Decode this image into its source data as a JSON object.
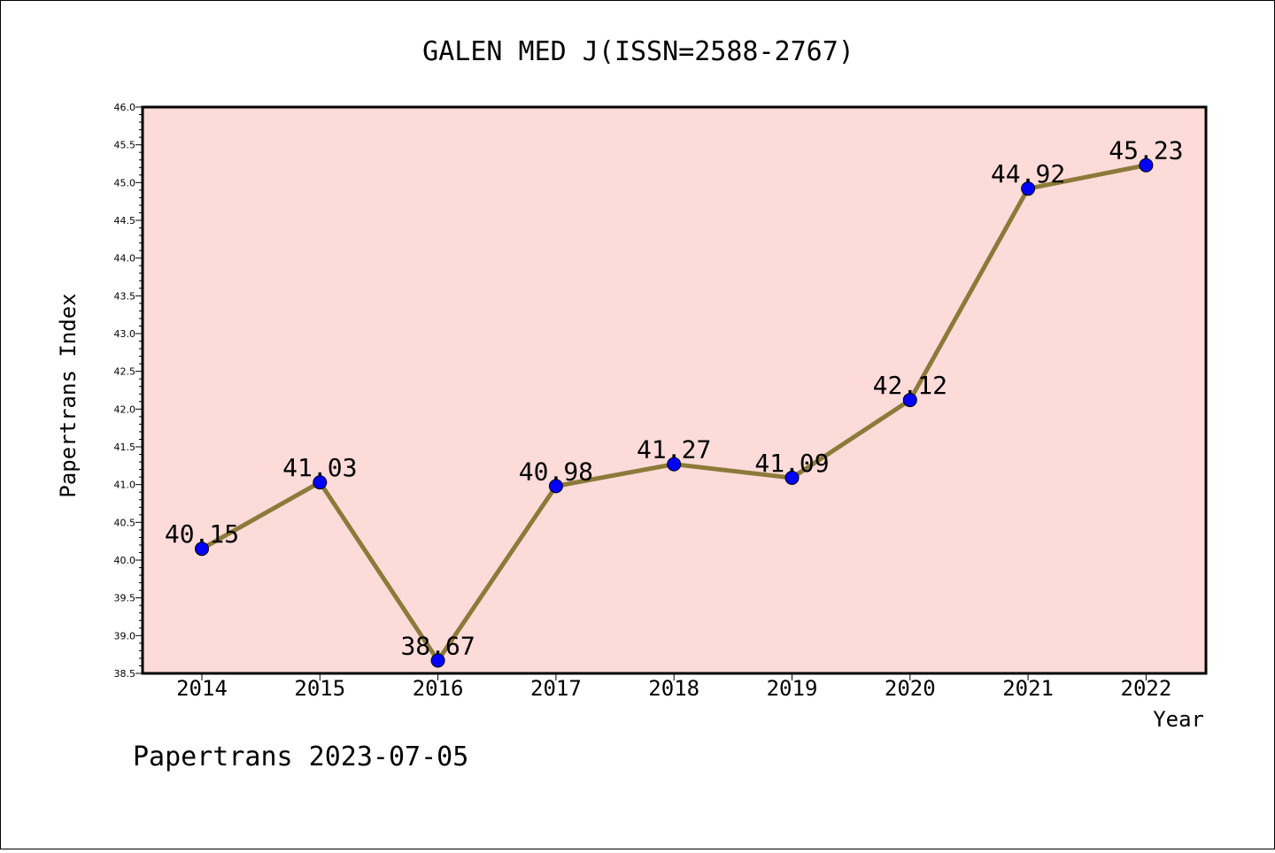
{
  "chart_data": {
    "type": "line",
    "title": "GALEN MED J(ISSN=2588-2767)",
    "xlabel": "Year",
    "ylabel": "Papertrans Index",
    "categories": [
      "2014",
      "2015",
      "2016",
      "2017",
      "2018",
      "2019",
      "2020",
      "2021",
      "2022"
    ],
    "series": [
      {
        "values": [
          40.15,
          41.03,
          38.67,
          40.98,
          41.27,
          41.09,
          42.12,
          44.92,
          45.23
        ],
        "labels": [
          "40.15",
          "41.03",
          "38.67",
          "40.98",
          "41.27",
          "41.09",
          "42.12",
          "44.92",
          "45.23"
        ]
      }
    ],
    "ylim": [
      38.5,
      46.0
    ],
    "yticks": [
      "38.5",
      "39.0",
      "39.5",
      "40.0",
      "40.5",
      "41.0",
      "41.5",
      "42.0",
      "42.5",
      "43.0",
      "43.5",
      "44.0",
      "44.5",
      "45.0",
      "45.5",
      "46.0"
    ],
    "grid": false,
    "colors": {
      "plot_background": "#fddbd9",
      "line": "#8c7a3a",
      "marker": "#0000ff"
    }
  },
  "footer": "Papertrans 2023-07-05"
}
